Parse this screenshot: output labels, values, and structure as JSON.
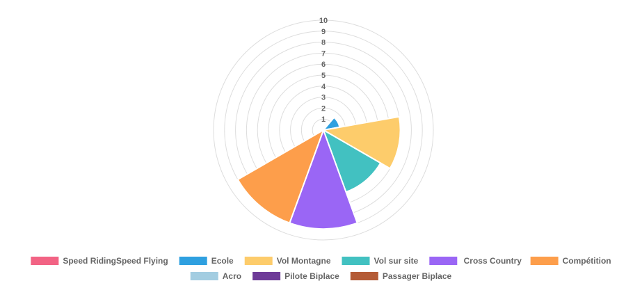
{
  "chart_data": {
    "type": "polarArea",
    "title": "",
    "categories": [
      "Speed RidingSpeed Flying",
      "Ecole",
      "Vol Montagne",
      "Vol sur site",
      " Cross Country",
      "Compétition",
      "Acro",
      "Pilote Biplace",
      "Passager Biplace"
    ],
    "values": [
      0,
      1.5,
      7,
      6,
      9,
      9,
      0,
      0,
      0
    ],
    "colors": [
      "#f26384",
      "#2fa0e0",
      "#fdcc6b",
      "#42c1c1",
      "#9a66f5",
      "#fd9e4b",
      "#a3cde1",
      "#6e3b98",
      "#b45b36"
    ],
    "r_axis": {
      "min": 0,
      "max": 10,
      "ticks": [
        "1",
        "2",
        "3",
        "4",
        "5",
        "6",
        "7",
        "8",
        "9",
        "10"
      ]
    },
    "grid": true,
    "legend_position": "bottom"
  }
}
